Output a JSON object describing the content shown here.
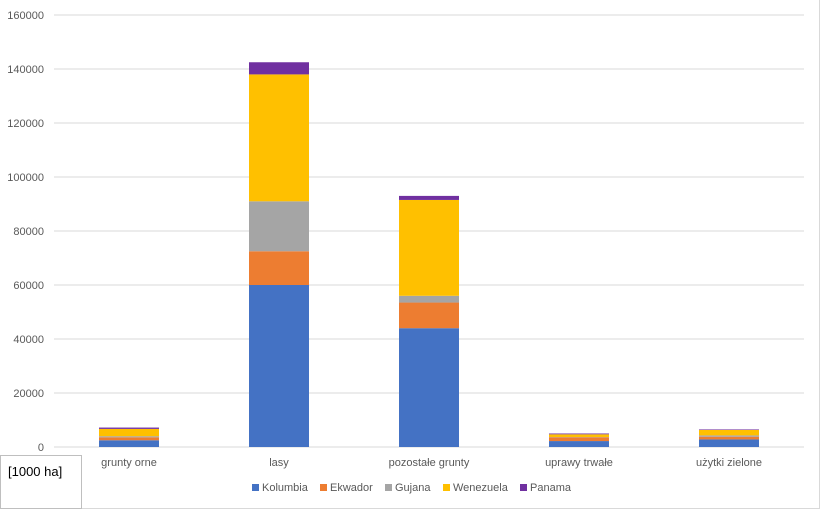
{
  "chart_data": {
    "type": "bar",
    "stacked": true,
    "categories": [
      "grunty orne",
      "lasy",
      "pozostałe grunty",
      "uprawy trwałe",
      "użytki zielone"
    ],
    "series": [
      {
        "name": "Kolumbia",
        "color": "#4472C4",
        "values": [
          2500,
          60000,
          44000,
          2200,
          2800
        ]
      },
      {
        "name": "Ekwador",
        "color": "#ED7D31",
        "values": [
          1100,
          12500,
          9500,
          1400,
          1000
        ]
      },
      {
        "name": "Gujana",
        "color": "#A5A5A5",
        "values": [
          400,
          18500,
          2500,
          100,
          500
        ]
      },
      {
        "name": "Wenezuela",
        "color": "#FFC000",
        "values": [
          2700,
          47000,
          35500,
          1000,
          2000
        ]
      },
      {
        "name": "Panama",
        "color": "#7030A0",
        "values": [
          500,
          4500,
          1500,
          300,
          200
        ]
      }
    ],
    "ylim": [
      0,
      160000
    ],
    "yticks": [
      0,
      20000,
      40000,
      60000,
      80000,
      100000,
      120000,
      140000,
      160000
    ],
    "grid": true,
    "legend": "bottom"
  },
  "unit_label": "[1000 ha]"
}
